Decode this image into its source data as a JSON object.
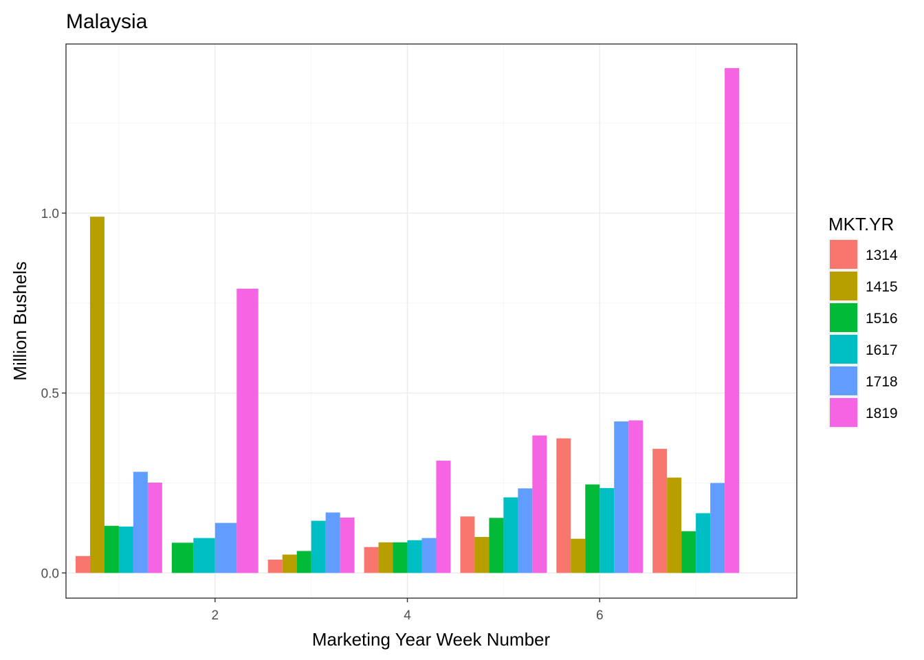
{
  "chart_data": {
    "type": "bar",
    "title": "Malaysia",
    "xlabel": "Marketing Year Week Number",
    "ylabel": "Million Bushels",
    "categories": [
      1,
      2,
      3,
      4,
      5,
      6,
      7
    ],
    "xlim": [
      0.45,
      8.05
    ],
    "ylim": [
      -0.07,
      1.47
    ],
    "x_ticks": [
      {
        "value": 2,
        "label": "2"
      },
      {
        "value": 4,
        "label": "4"
      },
      {
        "value": 6,
        "label": "6"
      }
    ],
    "y_ticks": [
      {
        "value": 0.0,
        "label": "0.0"
      },
      {
        "value": 0.5,
        "label": "0.5"
      },
      {
        "value": 1.0,
        "label": "1.0"
      }
    ],
    "grid": true,
    "legend": {
      "title": "MKT.YR",
      "position": "right"
    },
    "series": [
      {
        "name": "1314",
        "color": "#F8766D",
        "values": [
          0.047,
          null,
          0.037,
          0.072,
          0.157,
          0.374,
          0.345
        ]
      },
      {
        "name": "1415",
        "color": "#B79F00",
        "values": [
          0.99,
          null,
          0.051,
          0.085,
          0.1,
          0.095,
          0.265
        ]
      },
      {
        "name": "1516",
        "color": "#00BA38",
        "values": [
          0.131,
          0.084,
          0.061,
          0.085,
          0.153,
          0.246,
          0.116
        ]
      },
      {
        "name": "1617",
        "color": "#00BFC4",
        "values": [
          0.129,
          0.097,
          0.145,
          0.091,
          0.21,
          0.236,
          0.166
        ]
      },
      {
        "name": "1718",
        "color": "#619CFF",
        "values": [
          0.281,
          0.139,
          0.168,
          0.097,
          0.235,
          0.421,
          0.25
        ]
      },
      {
        "name": "1819",
        "color": "#F564E3",
        "values": [
          0.251,
          0.79,
          0.154,
          0.312,
          0.382,
          0.424,
          1.403
        ]
      }
    ]
  }
}
